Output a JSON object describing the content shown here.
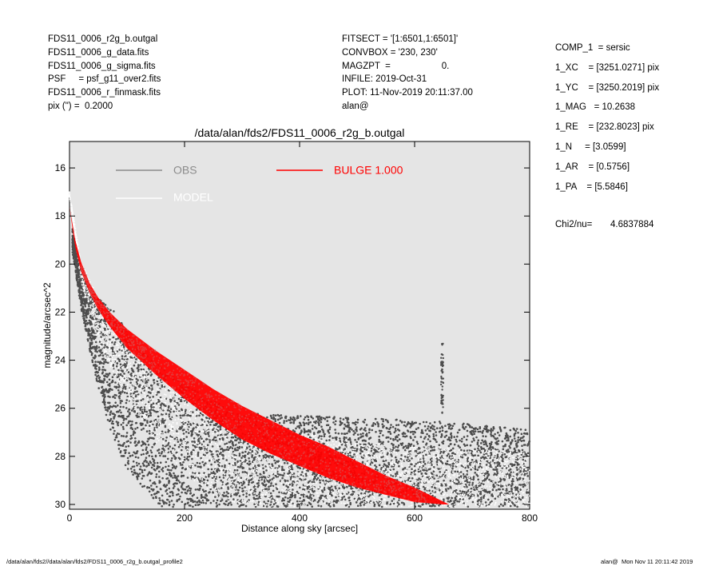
{
  "header_left": [
    "FDS11_0006_r2g_b.outgal",
    "FDS11_0006_g_data.fits",
    "FDS11_0006_g_sigma.fits",
    "PSF     = psf_g11_over2.fits",
    "FDS11_0006_r_finmask.fits",
    "pix (\") =  0.2000"
  ],
  "header_mid": [
    "FITSECT = '[1:6501,1:6501]'",
    "CONVBOX = '230, 230'",
    "MAGZPT  =                    0.",
    "INFILE: 2019-Oct-31",
    "PLOT: 11-Nov-2019 20:11:37.00",
    "alan@"
  ],
  "params": [
    "COMP_1  = sersic",
    "1_XC    = [3251.0271] pix",
    "1_YC    = [3250.2019] pix",
    "1_MAG   = 10.2638",
    "1_RE    = [232.8023] pix",
    "1_N     = [3.0599]",
    "1_AR    = [0.5756]",
    "1_PA    = [5.5846]"
  ],
  "chi2_label": "Chi2/nu=",
  "chi2_value": "4.6837884",
  "footer_left": "/data/alan/fds2//data/alan/fds2/FDS11_0006_r2g_b.outgal_profile2",
  "footer_right": "alan@  Mon Nov 11 20:11:42 2019",
  "colors": {
    "plot_background": "#e5e5e5",
    "obs": "#4d4d4d",
    "obs_legend": "#8c8c8c",
    "model": "#ffffff",
    "bulge": "#ff0000"
  },
  "chart_data": {
    "type": "scatter",
    "title": "/data/alan/fds2/FDS11_0006_r2g_b.outgal",
    "xlabel": "Distance along sky [arcsec]",
    "ylabel": "magnitude/arcsec^2",
    "xlim": [
      0,
      800
    ],
    "ylim": [
      30.2,
      14.9
    ],
    "y_inverted": true,
    "xticks": [
      0,
      200,
      400,
      600,
      800
    ],
    "yticks": [
      16,
      18,
      20,
      22,
      24,
      26,
      28,
      30
    ],
    "grid": false,
    "legend_placement": "top",
    "legend": [
      {
        "label": "OBS",
        "color": "#8c8c8c"
      },
      {
        "label": "MODEL",
        "color": "#ffffff"
      },
      {
        "label": "BULGE  1.000",
        "color": "#ff0000"
      }
    ],
    "series": [
      {
        "name": "BULGE  1.000",
        "kind": "band",
        "upper_edge": [
          [
            0,
            17.6
          ],
          [
            5,
            18.3
          ],
          [
            10,
            19.0
          ],
          [
            20,
            19.9
          ],
          [
            35,
            20.8
          ],
          [
            50,
            21.4
          ],
          [
            70,
            22.0
          ],
          [
            100,
            22.7
          ],
          [
            150,
            23.6
          ],
          [
            200,
            24.4
          ],
          [
            250,
            25.2
          ],
          [
            300,
            25.9
          ],
          [
            350,
            26.5
          ],
          [
            400,
            27.1
          ],
          [
            450,
            27.6
          ],
          [
            500,
            28.2
          ],
          [
            550,
            28.8
          ],
          [
            600,
            29.3
          ],
          [
            660,
            30.0
          ]
        ],
        "lower_edge": [
          [
            0,
            17.6
          ],
          [
            5,
            18.5
          ],
          [
            10,
            19.3
          ],
          [
            20,
            20.3
          ],
          [
            35,
            21.2
          ],
          [
            50,
            21.9
          ],
          [
            70,
            22.6
          ],
          [
            100,
            23.5
          ],
          [
            150,
            24.6
          ],
          [
            200,
            25.6
          ],
          [
            250,
            26.5
          ],
          [
            300,
            27.3
          ],
          [
            350,
            27.9
          ],
          [
            400,
            28.4
          ],
          [
            450,
            28.9
          ],
          [
            500,
            29.3
          ],
          [
            550,
            29.6
          ],
          [
            600,
            29.9
          ],
          [
            650,
            30.0
          ]
        ]
      },
      {
        "name": "OBS",
        "kind": "scatter_band",
        "upper_edge": [
          [
            5,
            18.5
          ],
          [
            20,
            20.3
          ],
          [
            40,
            21.3
          ],
          [
            60,
            21.6
          ],
          [
            75,
            21.8
          ],
          [
            100,
            22.8
          ],
          [
            130,
            23.7
          ],
          [
            160,
            24.3
          ],
          [
            200,
            25.0
          ],
          [
            250,
            25.7
          ],
          [
            300,
            26.2
          ],
          [
            400,
            26.3
          ],
          [
            500,
            26.4
          ],
          [
            600,
            26.5
          ],
          [
            680,
            26.6
          ],
          [
            800,
            26.9
          ]
        ],
        "lower_edge": [
          [
            5,
            19.5
          ],
          [
            20,
            21.8
          ],
          [
            40,
            24.2
          ],
          [
            60,
            26.1
          ],
          [
            80,
            27.5
          ],
          [
            100,
            28.5
          ],
          [
            130,
            29.4
          ],
          [
            160,
            30.1
          ],
          [
            800,
            30.1
          ]
        ],
        "peak": {
          "x": 648,
          "y_from": 23.2,
          "y_to": 26.2
        }
      },
      {
        "name": "MODEL",
        "kind": "scatter_band",
        "upper_edge": [
          [
            0,
            17.0
          ],
          [
            20,
            19.9
          ],
          [
            50,
            21.4
          ],
          [
            100,
            22.8
          ],
          [
            150,
            23.8
          ],
          [
            200,
            24.8
          ],
          [
            300,
            26.3
          ],
          [
            400,
            27.0
          ],
          [
            500,
            27.4
          ],
          [
            600,
            27.6
          ],
          [
            800,
            27.8
          ]
        ],
        "lower_edge": [
          [
            0,
            17.2
          ],
          [
            20,
            20.7
          ],
          [
            50,
            23.3
          ],
          [
            100,
            25.6
          ],
          [
            150,
            27.4
          ],
          [
            200,
            28.7
          ],
          [
            250,
            29.6
          ],
          [
            300,
            30.1
          ],
          [
            800,
            30.1
          ]
        ]
      }
    ]
  }
}
